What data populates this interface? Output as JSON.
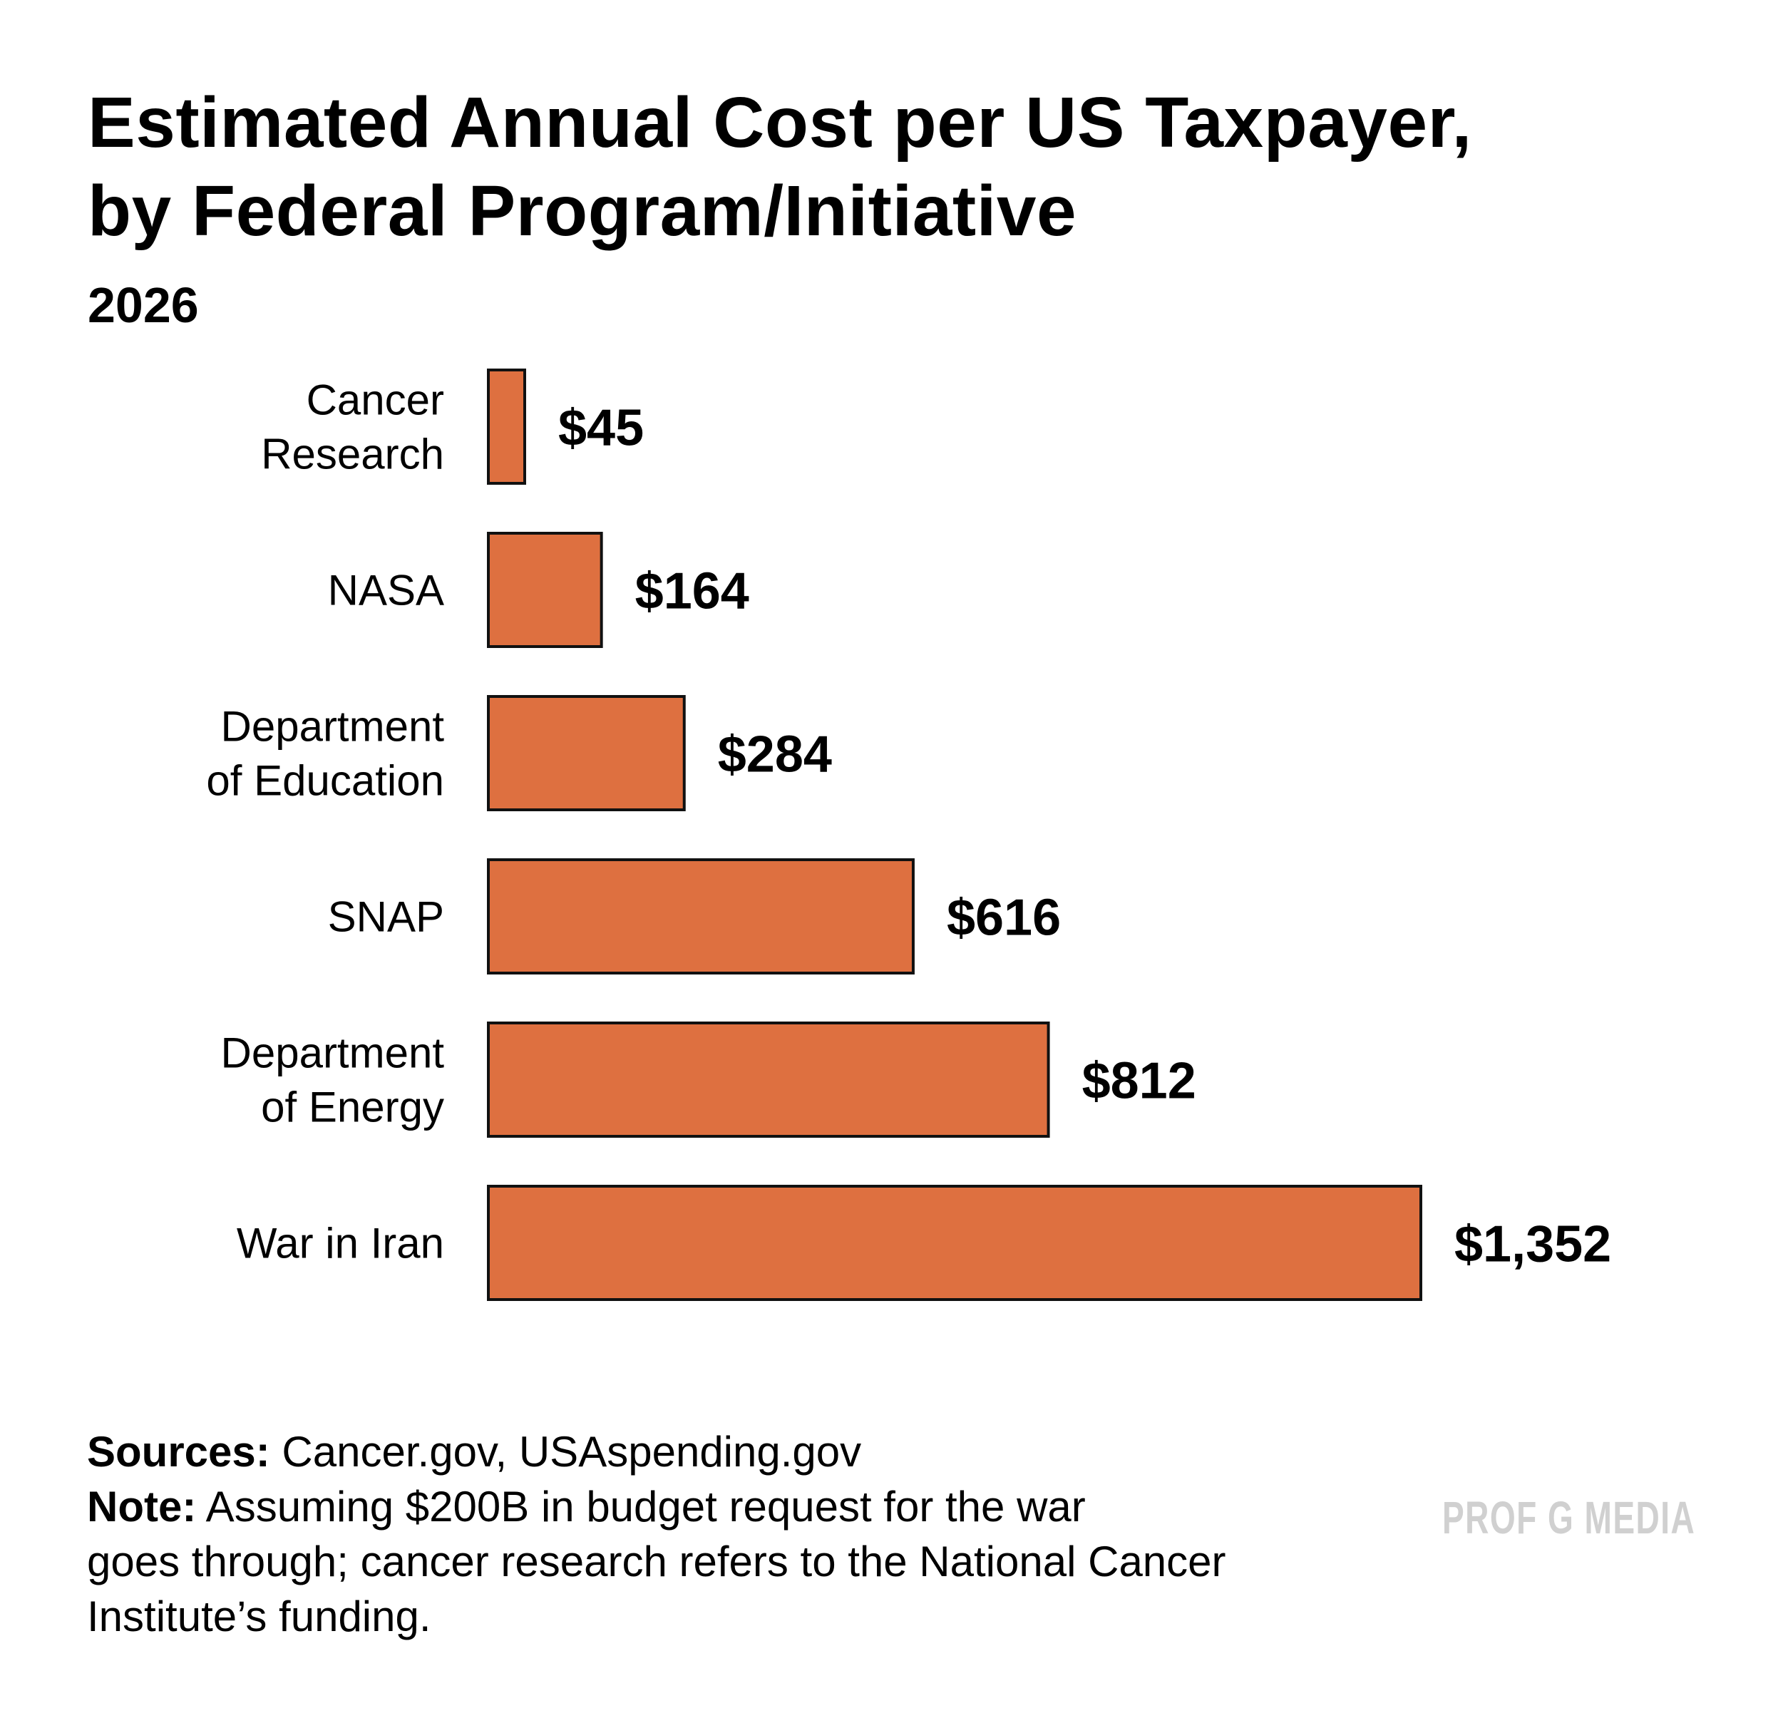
{
  "chart_data": {
    "type": "bar",
    "orientation": "horizontal",
    "title": "Estimated Annual Cost per US Taxpayer, by Federal Program/Initiative",
    "title_lines": [
      "Estimated Annual Cost per US Taxpayer,",
      "by Federal Program/Initiative"
    ],
    "subtitle": "2026",
    "categories": [
      [
        "Cancer",
        "Research"
      ],
      [
        "NASA"
      ],
      [
        "Department",
        "of Education"
      ],
      [
        "SNAP"
      ],
      [
        "Department",
        "of Energy"
      ],
      [
        "War in Iran"
      ]
    ],
    "values": [
      45,
      164,
      284,
      616,
      812,
      1352
    ],
    "value_labels": [
      "$45",
      "$164",
      "$284",
      "$616",
      "$812",
      "$1,352"
    ],
    "xlabel": "",
    "ylabel": "",
    "xlim": [
      0,
      1352
    ],
    "grid": false,
    "bar_color": "#DE7040",
    "bar_edge_color": "#111111"
  },
  "footer": {
    "sources_label": "Sources:",
    "sources_text": " Cancer.gov, USAspending.gov",
    "note_label": "Note:",
    "note_lines": [
      " Assuming $200B in budget request for the war",
      "goes through; cancer research refers to the National Cancer",
      "Institute’s funding."
    ]
  },
  "watermark": "PROF G MEDIA"
}
